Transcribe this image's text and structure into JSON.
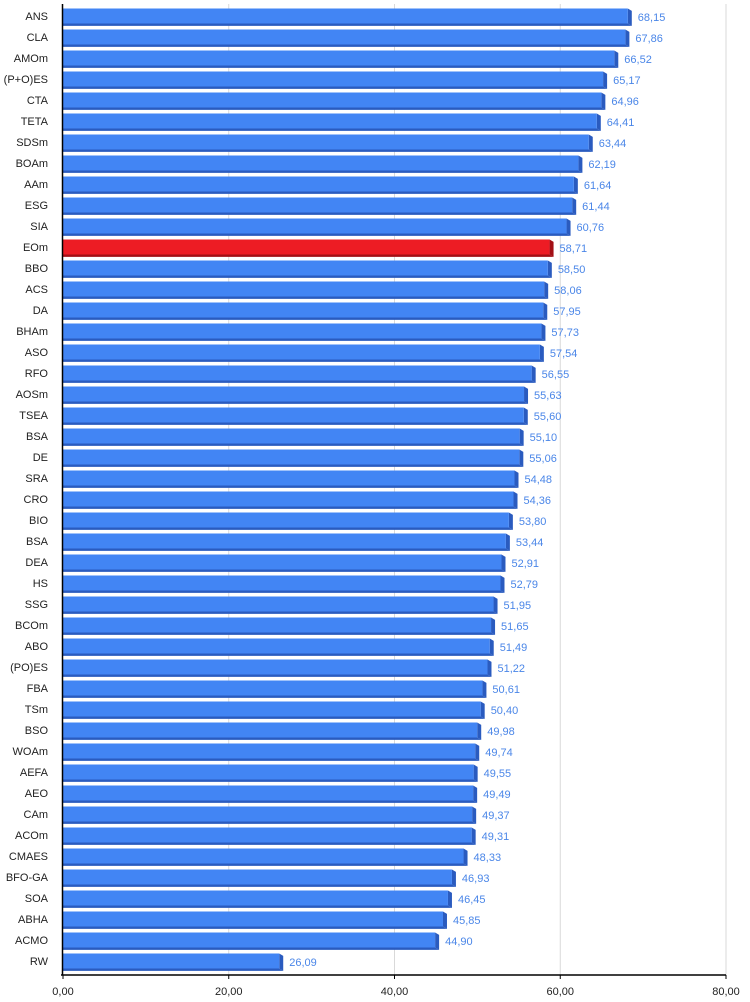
{
  "chart_data": {
    "type": "bar",
    "orientation": "horizontal",
    "title": "",
    "xlabel": "",
    "ylabel": "",
    "xlim": [
      0,
      80
    ],
    "x_ticks": [
      0,
      20,
      40,
      60,
      80
    ],
    "x_tick_labels": [
      "0,00",
      "20,00",
      "40,00",
      "60,00",
      "80,00"
    ],
    "grid": true,
    "legend": "none",
    "colors": {
      "bar": "#4285f4",
      "bar_shadow": "#2a5bbf",
      "highlight": "#ed1c24",
      "highlight_shadow": "#a30f15",
      "value_label": "#4a86e8",
      "gridline": "#d9d9d9",
      "axis": "#000000",
      "text": "#222222"
    },
    "highlighted_category": "EOm",
    "categories": [
      "ANS",
      "CLA",
      "AMOm",
      "(P+O)ES",
      "CTA",
      "TETA",
      "SDSm",
      "BOAm",
      "AAm",
      "ESG",
      "SIA",
      "EOm",
      "BBO",
      "ACS",
      "DA",
      "BHAm",
      "ASO",
      "RFO",
      "AOSm",
      "TSEA",
      "BSA",
      "DE",
      "SRA",
      "CRO",
      "BIO",
      "BSA",
      "DEA",
      "HS",
      "SSG",
      "BCOm",
      "ABO",
      "(PO)ES",
      "FBA",
      "TSm",
      "BSO",
      "WOAm",
      "AEFA",
      "AEO",
      "CAm",
      "ACOm",
      "CMAES",
      "BFO-GA",
      "SOA",
      "ABHA",
      "ACMO",
      "RW"
    ],
    "values": [
      68.15,
      67.86,
      66.52,
      65.17,
      64.96,
      64.41,
      63.44,
      62.19,
      61.64,
      61.44,
      60.76,
      58.71,
      58.5,
      58.06,
      57.95,
      57.73,
      57.54,
      56.55,
      55.63,
      55.6,
      55.1,
      55.06,
      54.48,
      54.36,
      53.8,
      53.44,
      52.91,
      52.79,
      51.95,
      51.65,
      51.49,
      51.22,
      50.61,
      50.4,
      49.98,
      49.74,
      49.55,
      49.49,
      49.37,
      49.31,
      48.33,
      46.93,
      46.45,
      45.85,
      44.9,
      26.09
    ],
    "value_labels": [
      "68,15",
      "67,86",
      "66,52",
      "65,17",
      "64,96",
      "64,41",
      "63,44",
      "62,19",
      "61,64",
      "61,44",
      "60,76",
      "58,71",
      "58,50",
      "58,06",
      "57,95",
      "57,73",
      "57,54",
      "56,55",
      "55,63",
      "55,60",
      "55,10",
      "55,06",
      "54,48",
      "54,36",
      "53,80",
      "53,44",
      "52,91",
      "52,79",
      "51,95",
      "51,65",
      "51,49",
      "51,22",
      "50,61",
      "50,40",
      "49,98",
      "49,74",
      "49,55",
      "49,49",
      "49,37",
      "49,31",
      "48,33",
      "46,93",
      "46,45",
      "45,85",
      "44,90",
      "26,09"
    ]
  }
}
